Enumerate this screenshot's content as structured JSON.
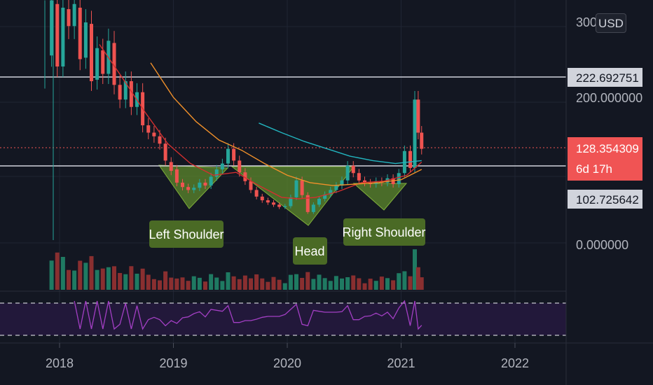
{
  "currency": "USD",
  "colors": {
    "background": "#131722",
    "up": "#26a69a",
    "down": "#ef5350",
    "ma_red": "#d32f2f",
    "ma_orange": "#f0902a",
    "ma_teal": "#22b5bf",
    "rsi": "#9c27b0",
    "pattern_fill": "#5d8a2c",
    "label_bg": "#4a6a25",
    "price_badge": "#f05454"
  },
  "chart_data": {
    "type": "candlestick",
    "symbol_note": "",
    "x_ticks": [
      {
        "label": "2018",
        "date": "2018-01"
      },
      {
        "label": "2019",
        "date": "2019-01"
      },
      {
        "label": "2020",
        "date": "2020-01"
      },
      {
        "label": "2021",
        "date": "2021-01"
      },
      {
        "label": "2022",
        "date": "2022-01"
      }
    ],
    "y_ticks": [
      {
        "label": "300",
        "value": 300
      },
      {
        "label": "200.000000",
        "value": 200
      },
      {
        "label": "0.000000",
        "value": 0
      }
    ],
    "price_lines": [
      {
        "label": "222.692751",
        "value": 222.69
      },
      {
        "label": "102.725642",
        "value": 102.73
      }
    ],
    "current_price": {
      "label": "128.354309",
      "countdown": "6d 17h",
      "value": 128.35
    },
    "annotations": [
      {
        "label": "Left Shoulder"
      },
      {
        "label": "Head"
      },
      {
        "label": "Right Shoulder"
      }
    ],
    "series": [
      {
        "type": "candles",
        "points": [
          [
            2017.93,
            255,
            330
          ],
          [
            2017.98,
            325,
            240
          ],
          [
            2018.03,
            240,
            320
          ],
          [
            2018.08,
            318,
            295
          ],
          [
            2018.13,
            295,
            325
          ],
          [
            2018.18,
            320,
            250
          ],
          [
            2018.23,
            252,
            300
          ],
          [
            2018.28,
            298,
            220
          ],
          [
            2018.33,
            222,
            265
          ],
          [
            2018.38,
            262,
            230
          ],
          [
            2018.43,
            230,
            275
          ],
          [
            2018.48,
            272,
            215
          ],
          [
            2018.53,
            215,
            195
          ],
          [
            2018.58,
            195,
            220
          ],
          [
            2018.63,
            220,
            185
          ],
          [
            2018.68,
            185,
            205
          ],
          [
            2018.73,
            205,
            160
          ],
          [
            2018.78,
            160,
            150
          ],
          [
            2018.83,
            150,
            145
          ],
          [
            2018.88,
            145,
            135
          ],
          [
            2018.93,
            135,
            112
          ],
          [
            2018.98,
            110,
            98
          ],
          [
            2019.03,
            100,
            82
          ],
          [
            2019.08,
            82,
            76
          ],
          [
            2019.13,
            76,
            72
          ],
          [
            2019.18,
            72,
            75
          ],
          [
            2019.23,
            75,
            82
          ],
          [
            2019.28,
            82,
            78
          ],
          [
            2019.33,
            78,
            90
          ],
          [
            2019.38,
            90,
            100
          ],
          [
            2019.43,
            100,
            108
          ],
          [
            2019.48,
            108,
            128
          ],
          [
            2019.53,
            128,
            112
          ],
          [
            2019.58,
            112,
            96
          ],
          [
            2019.63,
            96,
            84
          ],
          [
            2019.68,
            84,
            72
          ],
          [
            2019.73,
            72,
            63
          ],
          [
            2019.78,
            63,
            58
          ],
          [
            2019.83,
            58,
            55
          ],
          [
            2019.88,
            55,
            52
          ],
          [
            2019.93,
            52,
            49
          ],
          [
            2019.98,
            49,
            50
          ],
          [
            2020.03,
            50,
            62
          ],
          [
            2020.08,
            62,
            85
          ],
          [
            2020.13,
            85,
            65
          ],
          [
            2020.18,
            65,
            42
          ],
          [
            2020.23,
            42,
            52
          ],
          [
            2020.28,
            52,
            60
          ],
          [
            2020.33,
            60,
            66
          ],
          [
            2020.38,
            66,
            72
          ],
          [
            2020.43,
            72,
            78
          ],
          [
            2020.48,
            78,
            85
          ],
          [
            2020.53,
            85,
            105
          ],
          [
            2020.58,
            105,
            95
          ],
          [
            2020.63,
            95,
            85
          ],
          [
            2020.68,
            85,
            82
          ],
          [
            2020.73,
            82,
            80
          ],
          [
            2020.78,
            80,
            84
          ],
          [
            2020.83,
            84,
            82
          ],
          [
            2020.88,
            82,
            88
          ],
          [
            2020.93,
            88,
            80
          ],
          [
            2020.98,
            80,
            95
          ],
          [
            2021.03,
            95,
            125
          ],
          [
            2021.08,
            125,
            102
          ],
          [
            2021.12,
            102,
            195
          ],
          [
            2021.15,
            195,
            150
          ],
          [
            2021.18,
            150,
            128
          ]
        ]
      },
      {
        "name": "",
        "type": "line",
        "color_key": "ma_red",
        "points": [
          [
            2018.35,
            270
          ],
          [
            2018.55,
            225
          ],
          [
            2018.75,
            178
          ],
          [
            2018.95,
            135
          ],
          [
            2019.15,
            108
          ],
          [
            2019.35,
            92
          ],
          [
            2019.55,
            96
          ],
          [
            2019.75,
            78
          ],
          [
            2019.95,
            62
          ],
          [
            2020.1,
            60
          ],
          [
            2020.25,
            62
          ],
          [
            2020.45,
            70
          ],
          [
            2020.65,
            82
          ],
          [
            2020.85,
            84
          ],
          [
            2021.05,
            92
          ],
          [
            2021.18,
            110
          ]
        ]
      },
      {
        "name": "",
        "type": "line",
        "color_key": "ma_orange",
        "points": [
          [
            2018.8,
            245
          ],
          [
            2019.0,
            198
          ],
          [
            2019.2,
            165
          ],
          [
            2019.4,
            140
          ],
          [
            2019.6,
            126
          ],
          [
            2019.8,
            108
          ],
          [
            2020.0,
            92
          ],
          [
            2020.2,
            82
          ],
          [
            2020.4,
            78
          ],
          [
            2020.6,
            80
          ],
          [
            2020.8,
            82
          ],
          [
            2021.0,
            86
          ],
          [
            2021.18,
            100
          ]
        ]
      },
      {
        "name": "",
        "type": "line",
        "color_key": "ma_teal",
        "points": [
          [
            2019.75,
            163
          ],
          [
            2019.95,
            150
          ],
          [
            2020.15,
            138
          ],
          [
            2020.35,
            128
          ],
          [
            2020.55,
            118
          ],
          [
            2020.75,
            112
          ],
          [
            2020.95,
            108
          ],
          [
            2021.18,
            112
          ]
        ]
      }
    ],
    "volume_note": "",
    "rsi_note": ""
  }
}
